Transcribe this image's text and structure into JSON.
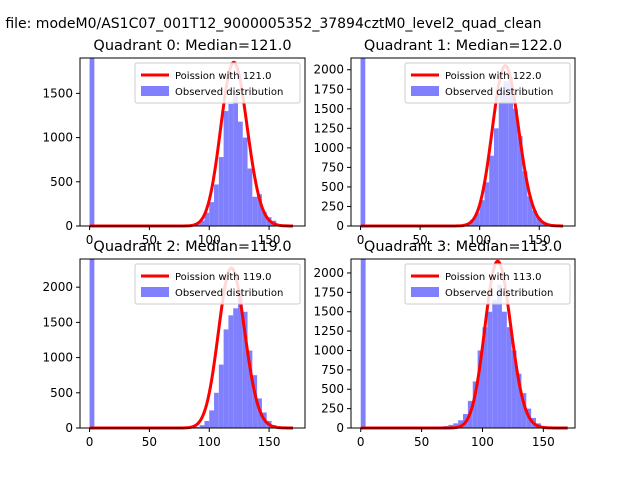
{
  "figure": {
    "suptitle": "n file: modeM0/AS1C07_001T12_9000005352_37894cztM0_level2_quad_clean"
  },
  "colors": {
    "hist_fill": "#8080ff",
    "fit_line": "#ff0000",
    "axes": "#000000"
  },
  "chart_data": [
    {
      "type": "bar",
      "title": "Quadrant 0: Median=121.0",
      "xlim": [
        -8,
        180
      ],
      "ylim": [
        0,
        1900
      ],
      "xticks": [
        0,
        50,
        100,
        150
      ],
      "yticks": [
        0,
        500,
        1000,
        1500
      ],
      "legend_position": "top-right",
      "series": [
        {
          "name": "Poission with 121.0",
          "kind": "line",
          "mean": 121.0,
          "peak": 1850
        },
        {
          "name": "Observed distribution",
          "kind": "histogram",
          "bin_width": 4,
          "bins": [
            {
              "x0": 0,
              "count": 1900
            },
            {
              "x0": 80,
              "count": 5
            },
            {
              "x0": 84,
              "count": 15
            },
            {
              "x0": 88,
              "count": 30
            },
            {
              "x0": 92,
              "count": 60
            },
            {
              "x0": 96,
              "count": 150
            },
            {
              "x0": 100,
              "count": 270
            },
            {
              "x0": 104,
              "count": 470
            },
            {
              "x0": 108,
              "count": 780
            },
            {
              "x0": 112,
              "count": 1300
            },
            {
              "x0": 116,
              "count": 1380
            },
            {
              "x0": 120,
              "count": 1520
            },
            {
              "x0": 124,
              "count": 1180
            },
            {
              "x0": 128,
              "count": 1000
            },
            {
              "x0": 132,
              "count": 650
            },
            {
              "x0": 136,
              "count": 330
            },
            {
              "x0": 140,
              "count": 360
            },
            {
              "x0": 144,
              "count": 160
            },
            {
              "x0": 148,
              "count": 100
            },
            {
              "x0": 152,
              "count": 60
            },
            {
              "x0": 156,
              "count": 20
            },
            {
              "x0": 160,
              "count": 5
            }
          ]
        }
      ]
    },
    {
      "type": "bar",
      "title": "Quadrant 1: Median=122.0",
      "xlim": [
        -8,
        180
      ],
      "ylim": [
        0,
        2150
      ],
      "xticks": [
        0,
        50,
        100,
        150
      ],
      "yticks": [
        0,
        250,
        500,
        750,
        1000,
        1250,
        1500,
        1750,
        2000
      ],
      "legend_position": "top-right",
      "series": [
        {
          "name": "Poission with 122.0",
          "kind": "line",
          "mean": 122.0,
          "peak": 2050
        },
        {
          "name": "Observed distribution",
          "kind": "histogram",
          "bin_width": 4,
          "bins": [
            {
              "x0": 0,
              "count": 2150
            },
            {
              "x0": 80,
              "count": 5
            },
            {
              "x0": 84,
              "count": 15
            },
            {
              "x0": 88,
              "count": 35
            },
            {
              "x0": 92,
              "count": 80
            },
            {
              "x0": 96,
              "count": 170
            },
            {
              "x0": 100,
              "count": 330
            },
            {
              "x0": 104,
              "count": 560
            },
            {
              "x0": 108,
              "count": 900
            },
            {
              "x0": 112,
              "count": 1250
            },
            {
              "x0": 116,
              "count": 1700
            },
            {
              "x0": 120,
              "count": 1850
            },
            {
              "x0": 124,
              "count": 1900
            },
            {
              "x0": 128,
              "count": 1500
            },
            {
              "x0": 132,
              "count": 1150
            },
            {
              "x0": 136,
              "count": 700
            },
            {
              "x0": 140,
              "count": 380
            },
            {
              "x0": 144,
              "count": 200
            },
            {
              "x0": 148,
              "count": 100
            },
            {
              "x0": 152,
              "count": 50
            },
            {
              "x0": 156,
              "count": 15
            }
          ]
        }
      ]
    },
    {
      "type": "bar",
      "title": "Quadrant 2: Median=119.0",
      "xlim": [
        -8,
        180
      ],
      "ylim": [
        0,
        2400
      ],
      "xticks": [
        0,
        50,
        100,
        150
      ],
      "yticks": [
        0,
        500,
        1000,
        1500,
        2000
      ],
      "legend_position": "top-right",
      "series": [
        {
          "name": "Poission with 119.0",
          "kind": "line",
          "mean": 119.0,
          "peak": 2270
        },
        {
          "name": "Observed distribution",
          "kind": "histogram",
          "bin_width": 4,
          "bins": [
            {
              "x0": 0,
              "count": 2400
            },
            {
              "x0": 84,
              "count": 5
            },
            {
              "x0": 88,
              "count": 15
            },
            {
              "x0": 92,
              "count": 40
            },
            {
              "x0": 96,
              "count": 100
            },
            {
              "x0": 100,
              "count": 250
            },
            {
              "x0": 104,
              "count": 500
            },
            {
              "x0": 108,
              "count": 900
            },
            {
              "x0": 112,
              "count": 1400
            },
            {
              "x0": 116,
              "count": 1600
            },
            {
              "x0": 120,
              "count": 1700
            },
            {
              "x0": 124,
              "count": 1950
            },
            {
              "x0": 128,
              "count": 1650
            },
            {
              "x0": 132,
              "count": 1100
            },
            {
              "x0": 136,
              "count": 750
            },
            {
              "x0": 140,
              "count": 420
            },
            {
              "x0": 144,
              "count": 220
            },
            {
              "x0": 148,
              "count": 100
            },
            {
              "x0": 152,
              "count": 40
            },
            {
              "x0": 156,
              "count": 15
            }
          ]
        }
      ]
    },
    {
      "type": "bar",
      "title": "Quadrant 3: Median=113.0",
      "xlim": [
        -8,
        176
      ],
      "ylim": [
        0,
        2180
      ],
      "xticks": [
        0,
        50,
        100,
        150
      ],
      "yticks": [
        0,
        250,
        500,
        750,
        1000,
        1250,
        1500,
        1750,
        2000
      ],
      "legend_position": "top-right",
      "series": [
        {
          "name": "Poission with 113.0",
          "kind": "line",
          "mean": 113.0,
          "peak": 2150
        },
        {
          "name": "Observed distribution",
          "kind": "histogram",
          "bin_width": 4,
          "bins": [
            {
              "x0": 0,
              "count": 2180
            },
            {
              "x0": 40,
              "count": 5
            },
            {
              "x0": 44,
              "count": 5
            },
            {
              "x0": 48,
              "count": 10
            },
            {
              "x0": 52,
              "count": 10
            },
            {
              "x0": 56,
              "count": 15
            },
            {
              "x0": 60,
              "count": 15
            },
            {
              "x0": 64,
              "count": 20
            },
            {
              "x0": 68,
              "count": 25
            },
            {
              "x0": 72,
              "count": 40
            },
            {
              "x0": 76,
              "count": 60
            },
            {
              "x0": 80,
              "count": 100
            },
            {
              "x0": 84,
              "count": 180
            },
            {
              "x0": 88,
              "count": 350
            },
            {
              "x0": 92,
              "count": 600
            },
            {
              "x0": 96,
              "count": 1000
            },
            {
              "x0": 100,
              "count": 1300
            },
            {
              "x0": 104,
              "count": 1500
            },
            {
              "x0": 108,
              "count": 1650
            },
            {
              "x0": 112,
              "count": 1850
            },
            {
              "x0": 116,
              "count": 1500
            },
            {
              "x0": 120,
              "count": 1300
            },
            {
              "x0": 124,
              "count": 1000
            },
            {
              "x0": 128,
              "count": 700
            },
            {
              "x0": 132,
              "count": 450
            },
            {
              "x0": 136,
              "count": 250
            },
            {
              "x0": 140,
              "count": 130
            },
            {
              "x0": 144,
              "count": 60
            },
            {
              "x0": 148,
              "count": 20
            },
            {
              "x0": 152,
              "count": 5
            }
          ]
        }
      ]
    }
  ]
}
